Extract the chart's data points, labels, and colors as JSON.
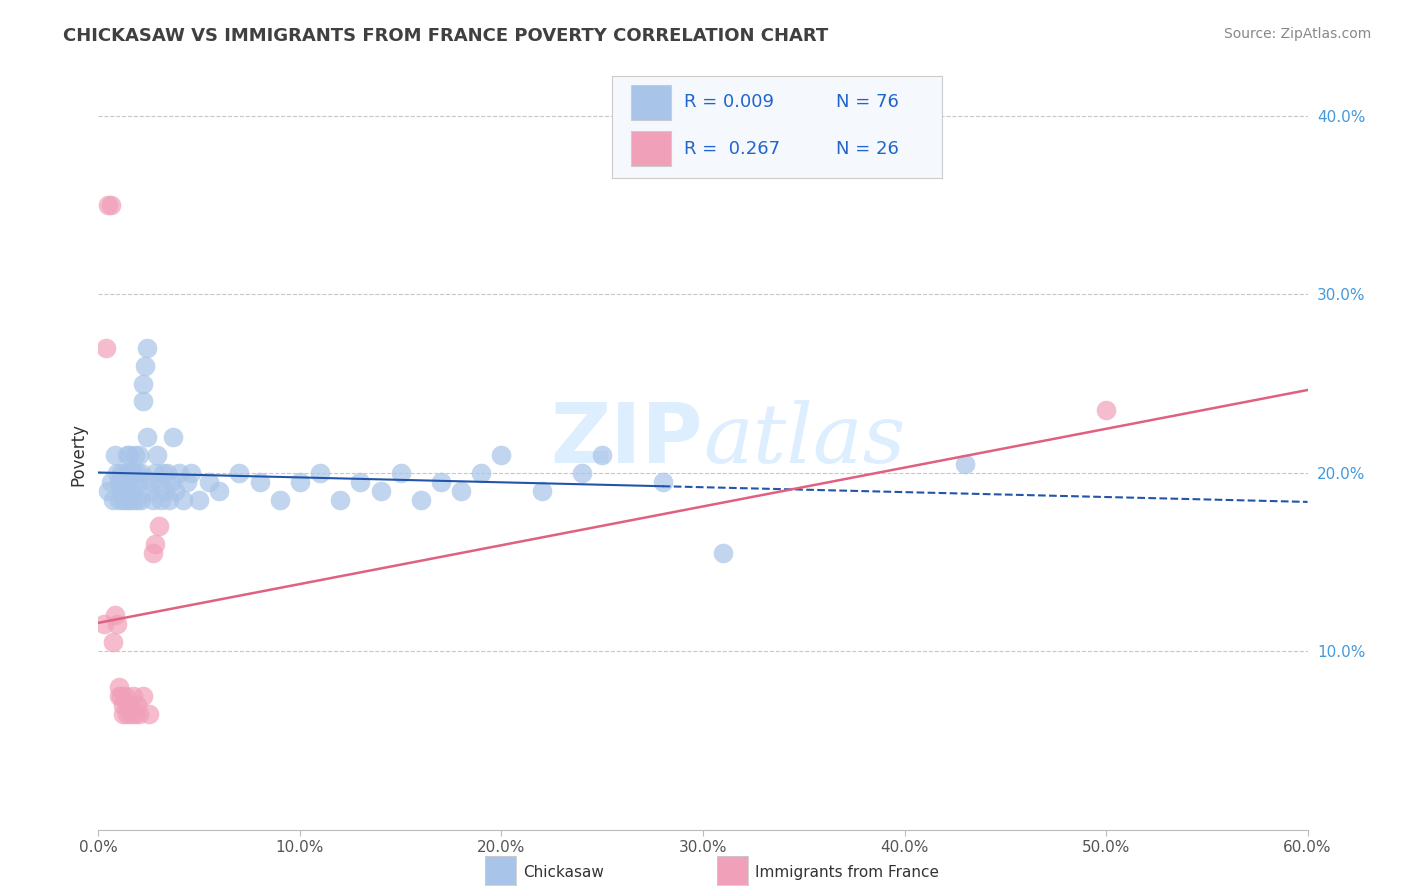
{
  "title": "CHICKASAW VS IMMIGRANTS FROM FRANCE POVERTY CORRELATION CHART",
  "source": "Source: ZipAtlas.com",
  "ylabel": "Poverty",
  "xlim": [
    0.0,
    0.6
  ],
  "ylim": [
    0.0,
    0.42
  ],
  "xticks": [
    0.0,
    0.1,
    0.2,
    0.3,
    0.4,
    0.5,
    0.6
  ],
  "xticklabels": [
    "0.0%",
    "10.0%",
    "20.0%",
    "30.0%",
    "40.0%",
    "50.0%",
    "60.0%"
  ],
  "yticks_right": [
    0.1,
    0.2,
    0.3,
    0.4
  ],
  "ytick_right_labels": [
    "10.0%",
    "20.0%",
    "30.0%",
    "40.0%"
  ],
  "background_color": "#ffffff",
  "grid_color": "#c8c8c8",
  "title_color": "#404040",
  "watermark_text": "ZIPatlas",
  "watermark_color": "#ddeeff",
  "legend_r1": "R = 0.009",
  "legend_n1": "N = 76",
  "legend_r2": "R =  0.267",
  "legend_n2": "N = 26",
  "chickasaw_color": "#a8c4e8",
  "france_color": "#f0a0b8",
  "chickasaw_line_color": "#2255aa",
  "france_line_color": "#e06080",
  "legend_box_bg": "#f5f8fc",
  "legend_box_color1": "#a8c4e8",
  "legend_box_color2": "#f0a0b8",
  "legend_text_color": "#2266cc",
  "chickasaw_scatter": [
    [
      0.005,
      0.19
    ],
    [
      0.006,
      0.195
    ],
    [
      0.007,
      0.185
    ],
    [
      0.008,
      0.21
    ],
    [
      0.009,
      0.2
    ],
    [
      0.01,
      0.185
    ],
    [
      0.01,
      0.195
    ],
    [
      0.011,
      0.19
    ],
    [
      0.011,
      0.2
    ],
    [
      0.012,
      0.185
    ],
    [
      0.012,
      0.195
    ],
    [
      0.013,
      0.19
    ],
    [
      0.013,
      0.2
    ],
    [
      0.014,
      0.185
    ],
    [
      0.014,
      0.21
    ],
    [
      0.015,
      0.185
    ],
    [
      0.015,
      0.2
    ],
    [
      0.015,
      0.21
    ],
    [
      0.016,
      0.19
    ],
    [
      0.016,
      0.2
    ],
    [
      0.017,
      0.185
    ],
    [
      0.017,
      0.2
    ],
    [
      0.018,
      0.195
    ],
    [
      0.018,
      0.21
    ],
    [
      0.019,
      0.185
    ],
    [
      0.019,
      0.2
    ],
    [
      0.02,
      0.195
    ],
    [
      0.02,
      0.21
    ],
    [
      0.021,
      0.185
    ],
    [
      0.021,
      0.2
    ],
    [
      0.022,
      0.24
    ],
    [
      0.022,
      0.25
    ],
    [
      0.023,
      0.26
    ],
    [
      0.024,
      0.27
    ],
    [
      0.024,
      0.22
    ],
    [
      0.025,
      0.19
    ],
    [
      0.026,
      0.195
    ],
    [
      0.027,
      0.185
    ],
    [
      0.028,
      0.2
    ],
    [
      0.029,
      0.21
    ],
    [
      0.03,
      0.195
    ],
    [
      0.031,
      0.185
    ],
    [
      0.032,
      0.2
    ],
    [
      0.033,
      0.19
    ],
    [
      0.034,
      0.2
    ],
    [
      0.035,
      0.185
    ],
    [
      0.036,
      0.195
    ],
    [
      0.037,
      0.22
    ],
    [
      0.038,
      0.19
    ],
    [
      0.04,
      0.2
    ],
    [
      0.042,
      0.185
    ],
    [
      0.044,
      0.195
    ],
    [
      0.046,
      0.2
    ],
    [
      0.05,
      0.185
    ],
    [
      0.055,
      0.195
    ],
    [
      0.06,
      0.19
    ],
    [
      0.07,
      0.2
    ],
    [
      0.08,
      0.195
    ],
    [
      0.09,
      0.185
    ],
    [
      0.1,
      0.195
    ],
    [
      0.11,
      0.2
    ],
    [
      0.12,
      0.185
    ],
    [
      0.13,
      0.195
    ],
    [
      0.14,
      0.19
    ],
    [
      0.15,
      0.2
    ],
    [
      0.16,
      0.185
    ],
    [
      0.17,
      0.195
    ],
    [
      0.18,
      0.19
    ],
    [
      0.19,
      0.2
    ],
    [
      0.2,
      0.21
    ],
    [
      0.22,
      0.19
    ],
    [
      0.24,
      0.2
    ],
    [
      0.25,
      0.21
    ],
    [
      0.28,
      0.195
    ],
    [
      0.31,
      0.155
    ],
    [
      0.43,
      0.205
    ]
  ],
  "france_scatter": [
    [
      0.003,
      0.115
    ],
    [
      0.004,
      0.27
    ],
    [
      0.005,
      0.35
    ],
    [
      0.006,
      0.35
    ],
    [
      0.007,
      0.105
    ],
    [
      0.008,
      0.12
    ],
    [
      0.009,
      0.115
    ],
    [
      0.01,
      0.08
    ],
    [
      0.01,
      0.075
    ],
    [
      0.011,
      0.075
    ],
    [
      0.012,
      0.07
    ],
    [
      0.012,
      0.065
    ],
    [
      0.013,
      0.075
    ],
    [
      0.014,
      0.065
    ],
    [
      0.015,
      0.07
    ],
    [
      0.016,
      0.065
    ],
    [
      0.017,
      0.075
    ],
    [
      0.018,
      0.065
    ],
    [
      0.019,
      0.07
    ],
    [
      0.02,
      0.065
    ],
    [
      0.022,
      0.075
    ],
    [
      0.025,
      0.065
    ],
    [
      0.027,
      0.155
    ],
    [
      0.028,
      0.16
    ],
    [
      0.03,
      0.17
    ],
    [
      0.5,
      0.235
    ]
  ]
}
